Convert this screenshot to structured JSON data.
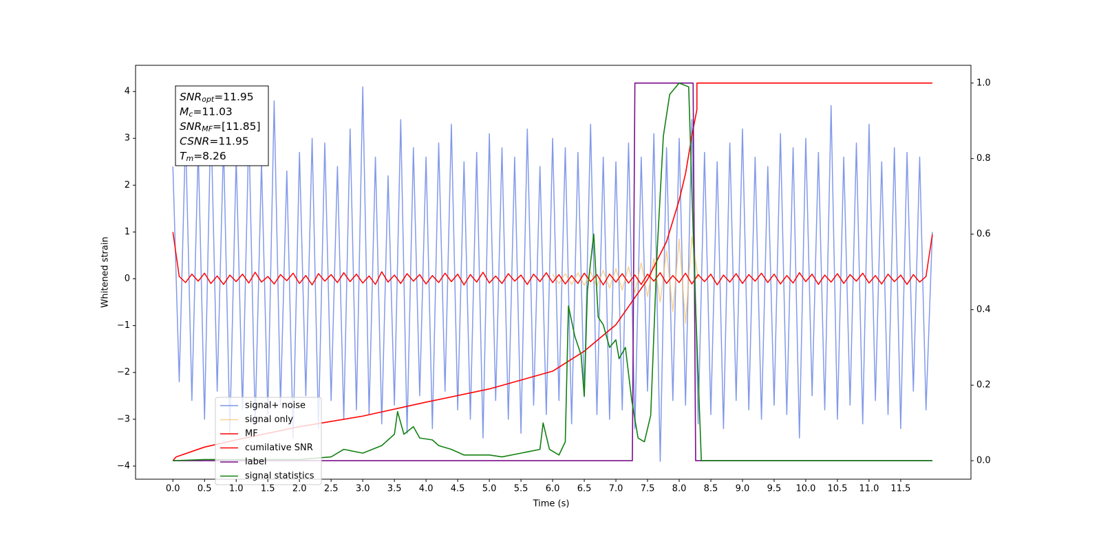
{
  "chart_data": {
    "type": "line",
    "xlabel": "Time (s)",
    "ylabel": "Whitened strain",
    "xlim": [
      -0.59,
      12.61
    ],
    "ylim": [
      -4.28,
      4.56
    ],
    "y2lim": [
      -0.049,
      1.047
    ],
    "xticks": [
      {
        "value": 0,
        "label": "0.0"
      },
      0.5,
      {
        "value": 1,
        "label": "1.0"
      },
      1.5,
      {
        "value": 2,
        "label": "2.0"
      },
      2.5,
      {
        "value": 3,
        "label": "3.0"
      },
      3.5,
      {
        "value": 4,
        "label": "4.0"
      },
      4.5,
      {
        "value": 5,
        "label": "5.0"
      },
      5.5,
      {
        "value": 6,
        "label": "6.0"
      },
      6.5,
      {
        "value": 7,
        "label": "7.0"
      },
      7.5,
      {
        "value": 8,
        "label": "8.0"
      },
      8.5,
      {
        "value": 9,
        "label": "9.0"
      },
      9.5,
      {
        "value": 10,
        "label": "10.0"
      },
      10.5,
      {
        "value": 11,
        "label": "11.0"
      },
      11.5
    ],
    "yticks": [
      {
        "value": -4,
        "label": "−4"
      },
      {
        "value": -3,
        "label": "−3"
      },
      {
        "value": -2,
        "label": "−2"
      },
      {
        "value": -1,
        "label": "−1"
      },
      0,
      1,
      2,
      3,
      4
    ],
    "y2ticks": [
      {
        "value": 0,
        "label": "0.0"
      },
      0.2,
      0.4,
      0.6,
      0.8,
      {
        "value": 1,
        "label": "1.0"
      }
    ],
    "legend_loc": "lower left",
    "annotation": [
      {
        "label": "SNR",
        "subscript": "opt",
        "text": "=11.95"
      },
      {
        "label": "M",
        "subscript": "c",
        "text": "=11.03"
      },
      {
        "label": "SNR",
        "subscript": "MF",
        "text": "=[11.85]"
      },
      {
        "label": "CSNR",
        "text": "=11.95"
      },
      {
        "label": "T",
        "subscript": "m",
        "text": "=8.26"
      }
    ],
    "x": [
      0,
      0.1,
      0.2,
      0.3,
      0.4,
      0.5,
      0.6,
      0.7,
      0.8,
      0.9,
      1,
      1.1,
      1.2,
      1.3,
      1.4,
      1.5,
      1.6,
      1.7,
      1.8,
      1.9,
      2,
      2.1,
      2.2,
      2.3,
      2.4,
      2.5,
      2.6,
      2.7,
      2.8,
      2.9,
      3,
      3.1,
      3.2,
      3.3,
      3.4,
      3.5,
      3.6,
      3.7,
      3.8,
      3.9,
      4,
      4.1,
      4.2,
      4.3,
      4.4,
      4.5,
      4.6,
      4.7,
      4.8,
      4.9,
      5,
      5.1,
      5.2,
      5.3,
      5.4,
      5.5,
      5.6,
      5.7,
      5.8,
      5.9,
      6,
      6.1,
      6.2,
      6.3,
      6.4,
      6.5,
      6.6,
      6.7,
      6.8,
      6.9,
      7,
      7.1,
      7.2,
      7.3,
      7.4,
      7.5,
      7.6,
      7.7,
      7.8,
      7.9,
      8,
      8.1,
      8.2,
      8.3,
      8.4,
      8.5,
      8.6,
      8.7,
      8.8,
      8.9,
      9,
      9.1,
      9.2,
      9.3,
      9.4,
      9.5,
      9.6,
      9.7,
      9.8,
      9.9,
      10,
      10.1,
      10.2,
      10.3,
      10.4,
      10.5,
      10.6,
      10.7,
      10.8,
      10.9,
      11,
      11.1,
      11.2,
      11.3,
      11.4,
      11.5,
      11.6,
      11.7,
      11.8,
      11.9,
      12
    ],
    "series": [
      {
        "name": "signal+ noise",
        "color": "#7b94e8",
        "values": [
          2.4,
          -2.2,
          3.1,
          -2.6,
          2.8,
          -3.0,
          3.5,
          -2.4,
          2.9,
          -3.3,
          2.6,
          -2.8,
          3.2,
          -3.1,
          2.5,
          -2.9,
          3.8,
          -2.7,
          2.3,
          -3.4,
          2.7,
          -2.5,
          3.0,
          -3.2,
          2.9,
          -2.6,
          2.4,
          -3.0,
          3.2,
          -2.8,
          4.1,
          -2.9,
          2.6,
          -3.1,
          2.2,
          -2.7,
          3.4,
          -3.3,
          2.8,
          -2.5,
          2.6,
          -3.2,
          2.9,
          -2.4,
          3.3,
          -2.8,
          2.5,
          -3.0,
          2.7,
          -3.4,
          3.1,
          -2.6,
          2.8,
          -3.0,
          2.6,
          -3.3,
          3.2,
          -2.7,
          2.4,
          -2.9,
          3.0,
          -2.6,
          2.8,
          -3.1,
          2.7,
          -2.5,
          3.3,
          -2.9,
          2.6,
          -3.0,
          2.5,
          -2.8,
          2.9,
          -3.2,
          2.6,
          -2.4,
          3.1,
          -3.9,
          2.8,
          -2.6,
          3.0,
          -2.7,
          3.4,
          -3.1,
          2.7,
          -2.9,
          2.5,
          -3.2,
          2.9,
          -2.6,
          3.2,
          -2.8,
          2.6,
          -3.0,
          2.4,
          -2.7,
          3.1,
          -2.9,
          2.8,
          -3.4,
          3.0,
          -2.5,
          2.7,
          -2.8,
          3.7,
          -3.0,
          2.6,
          -2.7,
          2.9,
          -3.1,
          3.3,
          -2.6,
          2.5,
          -2.9,
          2.8,
          -3.2,
          2.7,
          -2.4,
          2.6,
          -2.8,
          1.0
        ]
      },
      {
        "name": "signal only",
        "color": "#f5c36b",
        "x": [
          6,
          6.1,
          6.2,
          6.3,
          6.4,
          6.5,
          6.6,
          6.7,
          6.8,
          6.9,
          7,
          7.1,
          7.2,
          7.3,
          7.4,
          7.5,
          7.6,
          7.7,
          7.8,
          7.9,
          8,
          8.1,
          8.2,
          8.3
        ],
        "values": [
          0.1,
          -0.1,
          0.11,
          -0.12,
          0.13,
          -0.14,
          0.15,
          -0.16,
          0.18,
          -0.2,
          0.22,
          -0.24,
          0.26,
          -0.3,
          0.34,
          -0.38,
          0.44,
          -0.5,
          0.6,
          -0.7,
          0.85,
          -0.95,
          0.9,
          0
        ]
      },
      {
        "name": "MF",
        "color": "#ff0000",
        "values": [
          1.0,
          0.05,
          -0.08,
          0.1,
          -0.05,
          0.12,
          -0.1,
          0.06,
          -0.12,
          0.08,
          -0.06,
          0.1,
          -0.09,
          0.14,
          -0.07,
          0.05,
          -0.11,
          0.09,
          -0.04,
          0.12,
          -0.1,
          0.07,
          -0.13,
          0.11,
          -0.05,
          0.09,
          -0.08,
          0.13,
          -0.06,
          0.1,
          -0.09,
          0.06,
          -0.12,
          0.15,
          -0.07,
          0.08,
          -0.1,
          0.11,
          -0.05,
          0.09,
          -0.11,
          0.07,
          -0.08,
          0.12,
          -0.06,
          0.1,
          -0.13,
          0.09,
          -0.07,
          0.14,
          -0.09,
          0.06,
          -0.1,
          0.11,
          -0.05,
          0.08,
          -0.12,
          0.1,
          -0.06,
          0.13,
          -0.08,
          0.09,
          -0.11,
          0.07,
          -0.1,
          0.12,
          -0.06,
          0.09,
          -0.13,
          0.1,
          -0.07,
          0.11,
          -0.09,
          0.08,
          -0.12,
          0.1,
          -0.05,
          0.13,
          -0.1,
          0.07,
          -0.08,
          0.12,
          -0.11,
          0.09,
          -0.06,
          0.1,
          -0.13,
          0.08,
          -0.07,
          0.11,
          -0.1,
          0.09,
          -0.05,
          0.12,
          -0.08,
          0.1,
          -0.11,
          0.07,
          -0.09,
          0.13,
          -0.06,
          0.1,
          -0.12,
          0.08,
          -0.07,
          0.11,
          -0.1,
          0.09,
          -0.05,
          0.12,
          -0.09,
          0.07,
          -0.11,
          0.1,
          -0.06,
          0.08,
          -0.12,
          0.09,
          -0.07,
          0.05,
          0.95
        ]
      },
      {
        "name": "cumilative SNR",
        "color": "#ff0000",
        "axis": "y2",
        "x": [
          0,
          0.05,
          0.5,
          1,
          2,
          3,
          4,
          5,
          6,
          6.5,
          7,
          7.5,
          7.8,
          8,
          8.1,
          8.2,
          8.28,
          8.28,
          12
        ],
        "values": [
          0,
          0.01,
          0.036,
          0.055,
          0.09,
          0.118,
          0.155,
          0.19,
          0.237,
          0.29,
          0.36,
          0.48,
          0.58,
          0.69,
          0.76,
          0.86,
          0.93,
          1,
          1
        ]
      },
      {
        "name": "label",
        "color": "#7b0c8c",
        "axis": "y2",
        "x": [
          0,
          7.26,
          7.3,
          8.22,
          8.26,
          12
        ],
        "values": [
          0,
          0,
          1,
          1,
          0,
          0
        ]
      },
      {
        "name": "signal statistics",
        "color": "#118011",
        "axis": "y2",
        "x": [
          0,
          0.5,
          2,
          2.5,
          2.7,
          3.0,
          3.3,
          3.5,
          3.55,
          3.65,
          3.8,
          3.9,
          4.1,
          4.2,
          4.4,
          4.6,
          5.0,
          5.2,
          5.5,
          5.8,
          5.85,
          5.95,
          6.1,
          6.2,
          6.25,
          6.35,
          6.45,
          6.5,
          6.55,
          6.65,
          6.72,
          6.8,
          6.9,
          7.0,
          7.05,
          7.15,
          7.25,
          7.35,
          7.45,
          7.55,
          7.65,
          7.75,
          7.85,
          8.0,
          8.15,
          8.25,
          8.35,
          12
        ],
        "values": [
          0,
          0.003,
          0.003,
          0.01,
          0.03,
          0.02,
          0.04,
          0.07,
          0.13,
          0.07,
          0.09,
          0.06,
          0.055,
          0.04,
          0.03,
          0.015,
          0.015,
          0.01,
          0.02,
          0.03,
          0.1,
          0.03,
          0.015,
          0.05,
          0.41,
          0.33,
          0.28,
          0.17,
          0.45,
          0.6,
          0.38,
          0.36,
          0.3,
          0.32,
          0.27,
          0.3,
          0.16,
          0.06,
          0.05,
          0.12,
          0.55,
          0.86,
          0.97,
          1.0,
          0.99,
          0.45,
          0,
          0
        ]
      }
    ]
  }
}
